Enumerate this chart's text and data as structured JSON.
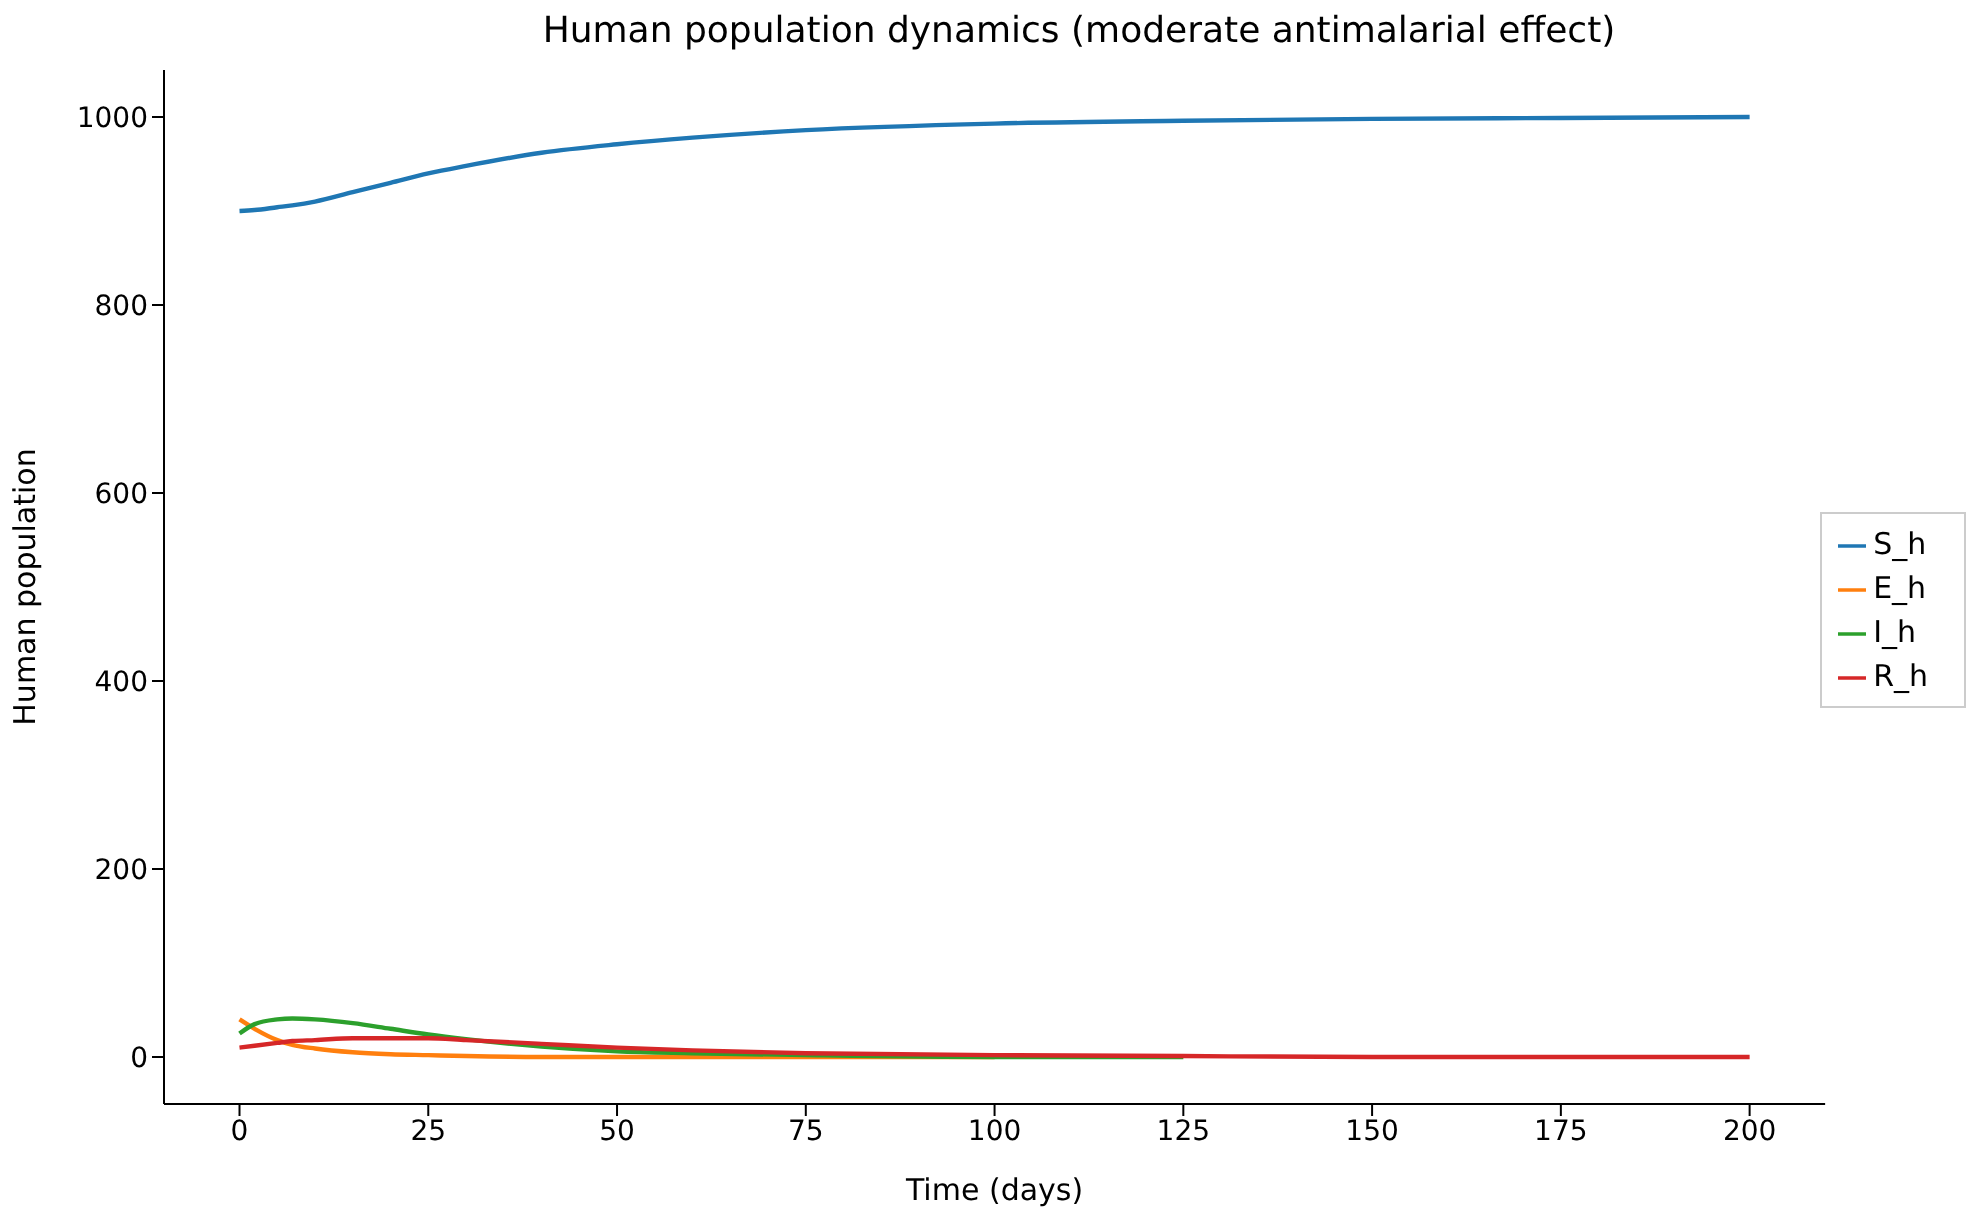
{
  "chart_data": {
    "type": "line",
    "title": "Human population dynamics (moderate antimalarial effect)",
    "xlabel": "Time (days)",
    "ylabel": "Human population",
    "x": [
      0,
      2,
      5,
      7,
      10,
      15,
      20,
      25,
      30,
      40,
      50,
      60,
      75,
      100,
      125,
      150,
      175,
      200
    ],
    "series": [
      {
        "name": "S_h",
        "color": "#1f77b4",
        "values": [
          900,
          901,
          904,
          906,
          910,
          920,
          930,
          940,
          948,
          962,
          971,
          978,
          986,
          993,
          996,
          998,
          999,
          1000
        ]
      },
      {
        "name": "E_h",
        "color": "#ff7f0e",
        "values": [
          40,
          30,
          18,
          13,
          9,
          5,
          3,
          2,
          1,
          0,
          0,
          0,
          0,
          0,
          null,
          null,
          null,
          null
        ]
      },
      {
        "name": "I_h",
        "color": "#2ca02c",
        "values": [
          25,
          35,
          40,
          41,
          40,
          36,
          30,
          24,
          19,
          11,
          6,
          4,
          2,
          0,
          0,
          null,
          null,
          null
        ]
      },
      {
        "name": "R_h",
        "color": "#d62728",
        "values": [
          10,
          12,
          15,
          17,
          18,
          20,
          20,
          20,
          18,
          14,
          10,
          7,
          4,
          2,
          1,
          0,
          0,
          0
        ]
      }
    ],
    "xlim": [
      -10,
      210
    ],
    "xticks": [
      0,
      25,
      50,
      75,
      100,
      125,
      150,
      175,
      200
    ],
    "ylim": [
      -50,
      1050
    ],
    "yticks": [
      0,
      200,
      400,
      600,
      800,
      1000
    ],
    "grid": false,
    "legend": "right",
    "marker": "none",
    "line_style": "solid"
  }
}
